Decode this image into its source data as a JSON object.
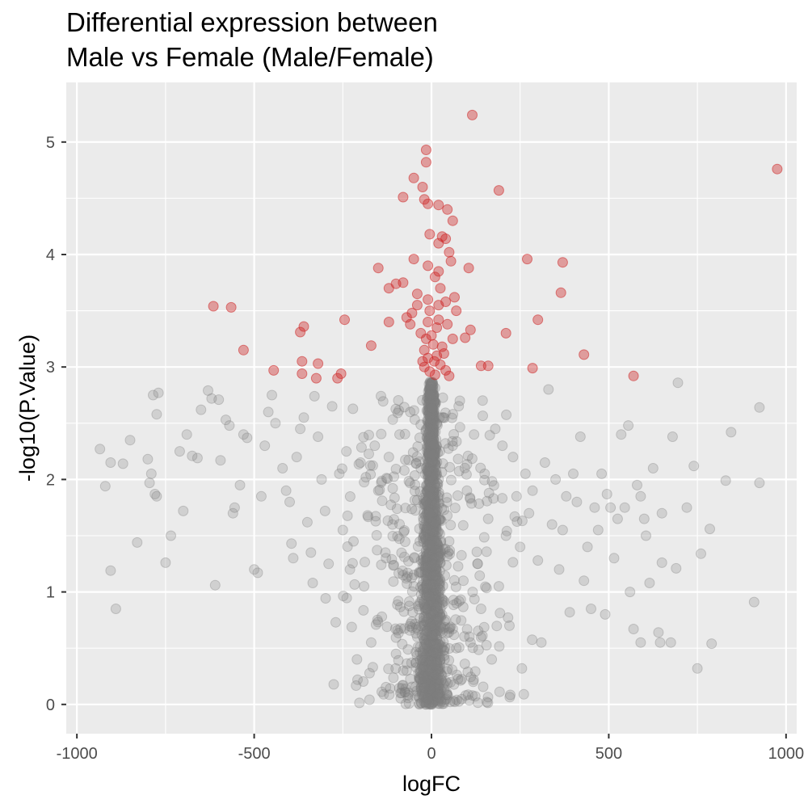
{
  "chart_data": {
    "type": "scatter",
    "title": "Differential expression between",
    "subtitle": "Male vs Female (Male/Female)",
    "xlabel": "logFC",
    "ylabel": "-log10(P.Value)",
    "xlim": [
      -1030,
      1030
    ],
    "ylim": [
      -0.26,
      5.53
    ],
    "x_ticks": [
      -1000,
      -500,
      0,
      500,
      1000
    ],
    "x_tick_labels": [
      "-1000",
      "-500",
      "0",
      "500",
      "1000"
    ],
    "y_ticks": [
      0,
      1,
      2,
      3,
      4,
      5
    ],
    "y_tick_labels": [
      "0",
      "1",
      "2",
      "3",
      "4",
      "5"
    ],
    "grid": true,
    "legend": "none",
    "colors": {
      "panel_background": "#ebebeb",
      "grid": "#ffffff",
      "significant": "#cd2626",
      "not_significant": "#7f7f7f"
    },
    "series": [
      {
        "key": "significant",
        "color": "#cd2626",
        "opacity": 0.4,
        "points": [
          [
            115,
            5.24
          ],
          [
            -15,
            4.93
          ],
          [
            -15,
            4.82
          ],
          [
            975,
            4.76
          ],
          [
            -50,
            4.68
          ],
          [
            190,
            4.57
          ],
          [
            -25,
            4.6
          ],
          [
            -80,
            4.51
          ],
          [
            -20,
            4.49
          ],
          [
            -10,
            4.45
          ],
          [
            20,
            4.44
          ],
          [
            45,
            4.4
          ],
          [
            60,
            4.3
          ],
          [
            -5,
            4.18
          ],
          [
            30,
            4.16
          ],
          [
            40,
            4.14
          ],
          [
            20,
            4.1
          ],
          [
            50,
            4.02
          ],
          [
            270,
            3.96
          ],
          [
            -50,
            3.96
          ],
          [
            370,
            3.93
          ],
          [
            55,
            3.94
          ],
          [
            -150,
            3.88
          ],
          [
            105,
            3.88
          ],
          [
            -10,
            3.9
          ],
          [
            20,
            3.85
          ],
          [
            -80,
            3.75
          ],
          [
            -100,
            3.74
          ],
          [
            -120,
            3.7
          ],
          [
            -40,
            3.65
          ],
          [
            365,
            3.66
          ],
          [
            -615,
            3.54
          ],
          [
            -565,
            3.53
          ],
          [
            -10,
            3.6
          ],
          [
            20,
            3.55
          ],
          [
            40,
            3.58
          ],
          [
            65,
            3.62
          ],
          [
            -40,
            3.55
          ],
          [
            -55,
            3.48
          ],
          [
            70,
            3.5
          ],
          [
            -70,
            3.44
          ],
          [
            -360,
            3.36
          ],
          [
            -370,
            3.31
          ],
          [
            -245,
            3.42
          ],
          [
            -120,
            3.4
          ],
          [
            300,
            3.42
          ],
          [
            -60,
            3.38
          ],
          [
            -10,
            3.4
          ],
          [
            20,
            3.42
          ],
          [
            45,
            3.38
          ],
          [
            110,
            3.33
          ],
          [
            210,
            3.3
          ],
          [
            -30,
            3.3
          ],
          [
            0,
            3.28
          ],
          [
            60,
            3.25
          ],
          [
            95,
            3.26
          ],
          [
            -530,
            3.15
          ],
          [
            -170,
            3.19
          ],
          [
            430,
            3.11
          ],
          [
            -365,
            3.05
          ],
          [
            -320,
            3.03
          ],
          [
            -20,
            3.15
          ],
          [
            15,
            3.1
          ],
          [
            30,
            3.18
          ],
          [
            140,
            3.01
          ],
          [
            160,
            3.01
          ],
          [
            285,
            2.99
          ],
          [
            -445,
            2.97
          ],
          [
            -365,
            2.94
          ],
          [
            -325,
            2.9
          ],
          [
            -255,
            2.94
          ],
          [
            -265,
            2.9
          ],
          [
            -20,
            3.0
          ],
          [
            -5,
            2.96
          ],
          [
            10,
            2.93
          ],
          [
            25,
            3.02
          ],
          [
            40,
            2.97
          ],
          [
            50,
            2.92
          ],
          [
            570,
            2.92
          ],
          [
            -10,
            3.08
          ],
          [
            5,
            3.2
          ],
          [
            -25,
            3.05
          ],
          [
            35,
            3.12
          ],
          [
            15,
            3.35
          ],
          [
            -5,
            3.5
          ],
          [
            25,
            3.7
          ],
          [
            10,
            3.8
          ],
          [
            -15,
            3.25
          ],
          [
            8,
            3.05
          ]
        ]
      },
      {
        "key": "not_significant",
        "color": "#7f7f7f",
        "opacity": 0.25,
        "points": [
          [
            -935,
            2.27
          ],
          [
            -905,
            2.15
          ],
          [
            -870,
            2.14
          ],
          [
            -850,
            2.35
          ],
          [
            -800,
            2.18
          ],
          [
            -785,
            2.75
          ],
          [
            -770,
            2.77
          ],
          [
            -775,
            2.58
          ],
          [
            -780,
            1.87
          ],
          [
            -790,
            2.05
          ],
          [
            -795,
            1.97
          ],
          [
            -775,
            1.85
          ],
          [
            -920,
            1.94
          ],
          [
            -905,
            1.19
          ],
          [
            -890,
            0.85
          ],
          [
            -830,
            1.44
          ],
          [
            -750,
            1.26
          ],
          [
            -735,
            1.5
          ],
          [
            -700,
            1.72
          ],
          [
            -710,
            2.25
          ],
          [
            -690,
            2.4
          ],
          [
            -675,
            2.21
          ],
          [
            -660,
            2.19
          ],
          [
            -650,
            2.62
          ],
          [
            -630,
            2.79
          ],
          [
            -620,
            2.72
          ],
          [
            -600,
            2.71
          ],
          [
            -595,
            2.17
          ],
          [
            -580,
            2.53
          ],
          [
            -570,
            2.48
          ],
          [
            -560,
            1.7
          ],
          [
            -555,
            1.75
          ],
          [
            -540,
            1.95
          ],
          [
            -530,
            2.4
          ],
          [
            -520,
            2.37
          ],
          [
            -610,
            1.06
          ],
          [
            -500,
            1.2
          ],
          [
            -490,
            1.17
          ],
          [
            -480,
            1.85
          ],
          [
            -470,
            2.3
          ],
          [
            -460,
            2.6
          ],
          [
            -450,
            2.75
          ],
          [
            -440,
            2.5
          ],
          [
            -420,
            2.1
          ],
          [
            -410,
            1.9
          ],
          [
            -400,
            1.8
          ],
          [
            -395,
            1.43
          ],
          [
            -390,
            1.3
          ],
          [
            -380,
            2.2
          ],
          [
            -370,
            2.45
          ],
          [
            -360,
            2.55
          ],
          [
            -350,
            1.62
          ],
          [
            -340,
            1.35
          ],
          [
            -335,
            1.08
          ],
          [
            -330,
            2.74
          ],
          [
            -320,
            2.38
          ],
          [
            -310,
            2.0
          ],
          [
            -300,
            1.72
          ],
          [
            -290,
            1.25
          ],
          [
            -280,
            2.65
          ],
          [
            -270,
            0.73
          ],
          [
            -260,
            2.05
          ],
          [
            -250,
            1.55
          ],
          [
            -240,
            2.25
          ],
          [
            -230,
            1.2
          ],
          [
            -220,
            1.45
          ],
          [
            -210,
            0.4
          ],
          [
            -200,
            2.15
          ],
          [
            -190,
            1.05
          ],
          [
            -180,
            1.68
          ],
          [
            -170,
            0.55
          ],
          [
            -160,
            2.3
          ],
          [
            -150,
            1.9
          ],
          [
            -140,
            0.78
          ],
          [
            -130,
            1.35
          ],
          [
            -120,
            2.2
          ],
          [
            -110,
            1.6
          ],
          [
            -100,
            0.45
          ],
          [
            -90,
            2.4
          ],
          [
            -80,
            1.15
          ],
          [
            -70,
            0.3
          ],
          [
            -60,
            2.6
          ],
          [
            -50,
            1.05
          ],
          [
            -40,
            0.6
          ],
          [
            -30,
            2.1
          ],
          [
            -20,
            0.15
          ],
          [
            -15,
            1.8
          ],
          [
            -10,
            0.05
          ],
          [
            10,
            0.35
          ],
          [
            20,
            1.0
          ],
          [
            30,
            2.55
          ],
          [
            40,
            0.75
          ],
          [
            50,
            1.45
          ],
          [
            60,
            2.3
          ],
          [
            70,
            0.5
          ],
          [
            80,
            2.7
          ],
          [
            90,
            1.1
          ],
          [
            100,
            1.9
          ],
          [
            110,
            0.55
          ],
          [
            120,
            2.4
          ],
          [
            130,
            1.25
          ],
          [
            140,
            0.85
          ],
          [
            150,
            2.05
          ],
          [
            160,
            1.65
          ],
          [
            170,
            0.4
          ],
          [
            180,
            2.45
          ],
          [
            190,
            1.05
          ],
          [
            200,
            2.3
          ],
          [
            210,
            1.5
          ],
          [
            220,
            0.7
          ],
          [
            230,
            2.2
          ],
          [
            240,
            1.85
          ],
          [
            250,
            1.4
          ],
          [
            255,
            0.32
          ],
          [
            265,
            2.05
          ],
          [
            275,
            1.7
          ],
          [
            285,
            1.9
          ],
          [
            300,
            1.28
          ],
          [
            310,
            0.55
          ],
          [
            320,
            2.15
          ],
          [
            330,
            2.8
          ],
          [
            340,
            1.6
          ],
          [
            350,
            2.0
          ],
          [
            360,
            1.2
          ],
          [
            370,
            1.55
          ],
          [
            380,
            1.85
          ],
          [
            390,
            0.82
          ],
          [
            400,
            2.05
          ],
          [
            410,
            1.8
          ],
          [
            420,
            2.38
          ],
          [
            430,
            1.1
          ],
          [
            440,
            1.4
          ],
          [
            450,
            0.85
          ],
          [
            460,
            1.75
          ],
          [
            470,
            1.55
          ],
          [
            480,
            2.05
          ],
          [
            490,
            0.8
          ],
          [
            495,
            1.87
          ],
          [
            505,
            1.75
          ],
          [
            515,
            1.3
          ],
          [
            525,
            1.65
          ],
          [
            535,
            2.4
          ],
          [
            545,
            1.75
          ],
          [
            555,
            2.48
          ],
          [
            560,
            1.0
          ],
          [
            570,
            0.67
          ],
          [
            580,
            1.95
          ],
          [
            590,
            0.55
          ],
          [
            600,
            1.65
          ],
          [
            605,
            1.5
          ],
          [
            615,
            1.08
          ],
          [
            625,
            2.1
          ],
          [
            640,
            0.64
          ],
          [
            645,
            0.55
          ],
          [
            650,
            1.26
          ],
          [
            675,
            0.55
          ],
          [
            680,
            2.38
          ],
          [
            690,
            1.21
          ],
          [
            695,
            2.86
          ],
          [
            740,
            2.12
          ],
          [
            760,
            1.34
          ],
          [
            785,
            1.56
          ],
          [
            790,
            0.54
          ],
          [
            830,
            1.99
          ],
          [
            845,
            2.42
          ],
          [
            910,
            0.91
          ],
          [
            925,
            1.97
          ],
          [
            925,
            2.64
          ],
          [
            750,
            0.32
          ],
          [
            720,
            1.75
          ],
          [
            650,
            1.7
          ],
          [
            590,
            1.85
          ]
        ]
      }
    ]
  }
}
